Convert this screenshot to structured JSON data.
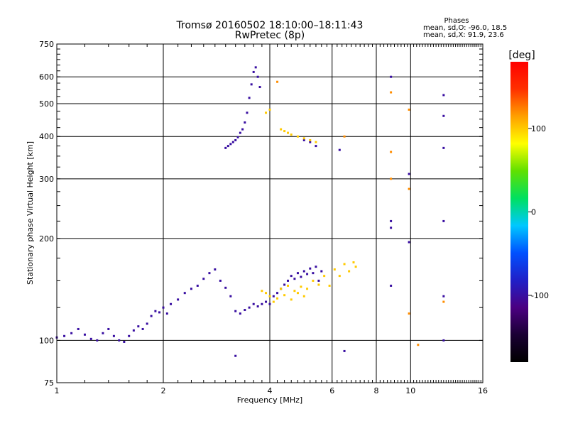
{
  "chart_data": {
    "type": "scatter",
    "title": "Tromsø 20160502 18:10:00–18:11:43",
    "subtitle": "RwPretec (8p)",
    "xlabel": "Frequency [MHz]",
    "ylabel": "Stationary phase Virtual Height [km]",
    "x_scale": "log",
    "y_scale": "log",
    "xlim": [
      1,
      16
    ],
    "ylim": [
      75,
      750
    ],
    "x_ticks": [
      1,
      2,
      4,
      6,
      8,
      10,
      16
    ],
    "y_ticks": [
      75,
      100,
      200,
      300,
      400,
      500,
      600,
      750
    ],
    "grid": true,
    "info": {
      "heading": "Phases",
      "line1": "mean, sd,O:  -96.0, 18.5",
      "line2": "mean, sd,X:  91.9, 23.6"
    },
    "colorbar": {
      "label": "[deg]",
      "range": [
        -180,
        180
      ],
      "ticks": [
        100,
        0,
        -100
      ],
      "colormap": [
        "#000000",
        "#1a0033",
        "#4b0082",
        "#2020c8",
        "#0050ff",
        "#00c8ff",
        "#00e060",
        "#60e000",
        "#ffff00",
        "#ffa000",
        "#ff3000",
        "#ff0000"
      ]
    },
    "series": [
      {
        "key": "lower_trace",
        "phase_deg": -100,
        "x": [
          1.0,
          1.05,
          1.1,
          1.15,
          1.2,
          1.25,
          1.3,
          1.35,
          1.4,
          1.45,
          1.5,
          1.55,
          1.6,
          1.65,
          1.7,
          1.75,
          1.8,
          1.85,
          1.9,
          1.95,
          2.0,
          2.05,
          2.1,
          2.2,
          2.3,
          2.4,
          2.5,
          2.6,
          2.7,
          2.8,
          2.9,
          3.0,
          3.1,
          3.2,
          3.3,
          3.4,
          3.5,
          3.6,
          3.7,
          3.8,
          3.9,
          4.0,
          4.1,
          4.2,
          4.3,
          4.4,
          4.5,
          4.6,
          4.7,
          4.8,
          4.9,
          5.0,
          5.1,
          5.2,
          5.3,
          5.4,
          5.5,
          5.6
        ],
        "y": [
          102,
          103,
          105,
          108,
          104,
          101,
          100,
          105,
          108,
          103,
          100,
          99,
          103,
          107,
          110,
          108,
          112,
          118,
          122,
          121,
          125,
          120,
          128,
          132,
          138,
          142,
          145,
          152,
          158,
          162,
          150,
          143,
          135,
          122,
          120,
          123,
          125,
          128,
          126,
          128,
          130,
          128,
          135,
          138,
          142,
          146,
          150,
          155,
          152,
          158,
          154,
          160,
          157,
          163,
          158,
          165,
          150,
          160
        ]
      },
      {
        "key": "upper_trace",
        "phase_deg": -100,
        "x": [
          3.0,
          3.05,
          3.1,
          3.15,
          3.2,
          3.25,
          3.3,
          3.35,
          3.4,
          3.45,
          3.5,
          3.55,
          3.6,
          3.65,
          3.7,
          3.75,
          5.0,
          5.2,
          5.4
        ],
        "y": [
          370,
          375,
          380,
          385,
          390,
          398,
          410,
          420,
          440,
          470,
          520,
          570,
          620,
          640,
          600,
          560,
          390,
          385,
          375
        ]
      },
      {
        "key": "x_mode_trace",
        "phase_deg": 100,
        "x": [
          3.8,
          3.9,
          4.0,
          4.1,
          4.2,
          4.3,
          4.4,
          4.5,
          4.6,
          4.7,
          4.8,
          4.9,
          5.0,
          5.1,
          5.3,
          5.5,
          5.7,
          5.9,
          6.1,
          6.3,
          6.5,
          6.7,
          6.9,
          7.0,
          4.3,
          4.4,
          4.5,
          4.6,
          4.8,
          5.0,
          5.2,
          5.4,
          3.9,
          4.0
        ],
        "y": [
          140,
          138,
          135,
          130,
          133,
          142,
          136,
          145,
          132,
          140,
          138,
          144,
          135,
          142,
          150,
          146,
          155,
          145,
          162,
          155,
          168,
          160,
          170,
          165,
          420,
          415,
          410,
          405,
          400,
          395,
          390,
          385,
          470,
          480
        ]
      },
      {
        "key": "scattered_points",
        "phase_deg": -100,
        "x": [
          3.2,
          6.5,
          8.8,
          8.8,
          9.9,
          12.4,
          12.4,
          12.4,
          8.8,
          12.4,
          12.4,
          8.8,
          9.9,
          12.4,
          6.3
        ],
        "y": [
          90,
          93,
          600,
          225,
          195,
          530,
          460,
          370,
          145,
          135,
          100,
          215,
          310,
          225,
          365
        ]
      },
      {
        "key": "scattered_points_x",
        "phase_deg": 120,
        "x": [
          8.8,
          8.8,
          9.9,
          9.9,
          12.4,
          8.8,
          9.9,
          10.5,
          6.5,
          4.2
        ],
        "y": [
          540,
          360,
          480,
          280,
          130,
          300,
          120,
          97,
          400,
          580
        ]
      }
    ]
  }
}
